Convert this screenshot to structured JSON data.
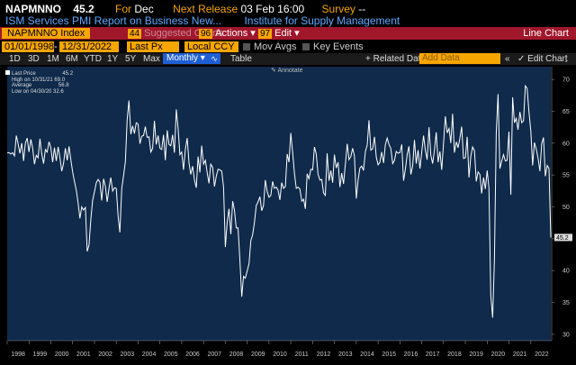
{
  "header": {
    "ticker": "NAPMNNO",
    "last_value": "45.2",
    "for_label": "For",
    "for_value": "Dec",
    "next_release_label": "Next Release",
    "next_release_value": "03 Feb 16:00",
    "survey_label": "Survey",
    "survey_value": "--",
    "description": "ISM Services PMI Report on Business New...",
    "source": "Institute for Supply Management"
  },
  "menubar": {
    "index": "NAPMNNO Index",
    "suggested_num": "44",
    "suggested": "Suggested Charts",
    "actions_num": "96",
    "actions": "Actions",
    "edit_num": "97",
    "edit": "Edit",
    "right_label": "Line Chart"
  },
  "toolbar1": {
    "start_date": "01/01/1998",
    "end_date": "12/31/2022",
    "price": "Last Px",
    "currency": "Local CCY",
    "mov_avgs": "Mov Avgs",
    "key_events": "Key Events"
  },
  "toolbar2": {
    "periods": [
      "1D",
      "3D",
      "1M",
      "6M",
      "YTD",
      "1Y",
      "5Y",
      "Max"
    ],
    "frequency": "Monthly",
    "table": "Table",
    "related": "+ Related Dat",
    "add_data": "Add Data",
    "edit_chart": "Edit Chart"
  },
  "legend": {
    "last_price": "Last Price",
    "last_price_value": "45.2",
    "high_label": "High on 10/31/21",
    "high_value": "69.0",
    "average_label": "Average",
    "average_value": "56.8",
    "low_label": "Low on 04/30/20",
    "low_value": "32.6"
  },
  "annotate": "Annotate",
  "colors": {
    "accent": "#f7a600",
    "menubar": "#a0162b",
    "fill": "#0f2a4a",
    "line": "#ffffff"
  },
  "chart_data": {
    "type": "area",
    "title": "",
    "ylim": [
      29,
      72
    ],
    "yticks": [
      30,
      35,
      40,
      45,
      50,
      55,
      60,
      65,
      70
    ],
    "xlabels": [
      "1998",
      "1999",
      "2000",
      "2001",
      "2002",
      "2003",
      "2004",
      "2005",
      "2006",
      "2007",
      "2008",
      "2009",
      "2010",
      "2011",
      "2012",
      "2013",
      "2014",
      "2015",
      "2016",
      "2017",
      "2018",
      "2019",
      "2020",
      "2021",
      "2022"
    ],
    "last_value_label": "45.2",
    "series": [
      {
        "values": [
          58.5,
          58.5,
          58.3,
          58.5,
          58.0,
          61.2,
          59.9,
          58.4,
          60.0,
          57.2,
          60.0,
          60.8,
          58.6,
          60.6,
          59.2,
          56.7,
          58.1,
          57.7,
          60.7,
          58.3,
          56.8,
          59.0,
          58.6,
          60.2,
          59.3,
          57.0,
          59.3,
          57.2,
          59.4,
          57.7,
          55.6,
          56.8,
          59.2,
          57.3,
          59.5,
          57.4,
          55.5,
          54.0,
          52.6,
          50.6,
          48.2,
          50.0,
          49.5,
          49.9,
          43.0,
          44.0,
          48.0,
          51.0,
          52.4,
          53.8,
          54.3,
          53.9,
          51.0,
          54.4,
          53.2,
          50.8,
          52.9,
          54.6,
          52.5,
          53.0,
          52.9,
          48.6,
          46.0,
          52.9,
          54.9,
          57.1,
          63.7,
          66.7,
          61.4,
          62.7,
          61.5,
          63.2,
          63.0,
          59.9,
          61.1,
          61.2,
          62.6,
          60.9,
          61.0,
          58.6,
          59.2,
          63.5,
          59.8,
          61.2,
          59.2,
          59.0,
          61.3,
          57.3,
          62.0,
          59.8,
          59.6,
          61.3,
          58.5,
          65.3,
          62.3,
          58.2,
          58.6,
          55.8,
          59.1,
          60.8,
          56.9,
          55.1,
          56.4,
          54.2,
          53.0,
          57.9,
          55.4,
          59.6,
          56.7,
          57.3,
          55.4,
          53.7,
          56.7,
          56.2,
          53.2,
          54.8,
          55.9,
          55.8,
          55.6,
          53.1,
          43.7,
          47.5,
          49.7,
          45.7,
          50.9,
          49.5,
          46.7,
          46.7,
          41.5,
          35.9,
          39.1,
          38.8,
          39.9,
          41.1,
          44.7,
          45.6,
          47.5,
          50.2,
          50.8,
          51.6,
          49.4,
          50.2,
          54.2,
          52.4,
          51.5,
          51.8,
          54.0,
          52.9,
          53.1,
          52.6,
          51.1,
          53.8,
          52.9,
          53.2,
          58.3,
          57.0,
          61.6,
          58.5,
          55.2,
          52.9,
          53.1,
          52.8,
          50.9,
          51.2,
          49.7,
          55.2,
          54.4,
          55.9,
          55.8,
          59.4,
          58.3,
          55.1,
          54.2,
          54.3,
          52.2,
          51.8,
          58.4,
          54.1,
          55.7,
          53.8,
          58.2,
          56.1,
          57.0,
          53.1,
          55.3,
          53.6,
          56.6,
          59.9,
          57.4,
          57.9,
          59.2,
          58.0,
          51.3,
          54.2,
          56.1,
          56.4,
          55.7,
          58.7,
          59.7,
          63.6,
          58.9,
          59.1,
          61.0,
          57.8,
          56.6,
          57.0,
          58.6,
          56.9,
          59.8,
          60.8,
          59.8,
          59.2,
          56.8,
          57.3,
          58.7,
          58.4,
          58.5,
          59.8,
          54.1,
          55.9,
          58.2,
          59.5,
          55.1,
          56.4,
          60.5,
          56.8,
          58.9,
          56.0,
          58.6,
          61.2,
          58.9,
          57.4,
          62.5,
          58.1,
          56.8,
          58.9,
          61.7,
          57.0,
          58.7,
          55.8,
          59.9,
          64.2,
          61.6,
          62.3,
          60.0,
          64.6,
          58.5,
          60.2,
          59.3,
          60.8,
          62.6,
          57.6,
          57.7,
          61.0,
          54.6,
          57.9,
          59.4,
          58.8,
          54.0,
          55.5,
          55.1,
          52.1,
          54.6,
          52.8,
          55.7,
          52.9,
          36.1,
          32.6,
          41.9,
          61.6,
          67.7,
          56.0,
          57.2,
          58.2,
          57.2,
          57.3,
          61.8,
          51.9,
          67.2,
          63.2,
          63.9,
          62.1,
          64.9,
          63.2,
          63.5,
          69.0,
          68.6,
          64.8,
          61.9,
          56.5,
          60.1,
          59.1,
          57.6,
          55.6,
          59.9,
          60.9,
          54.8,
          56.5,
          56.0,
          45.2
        ]
      }
    ]
  }
}
